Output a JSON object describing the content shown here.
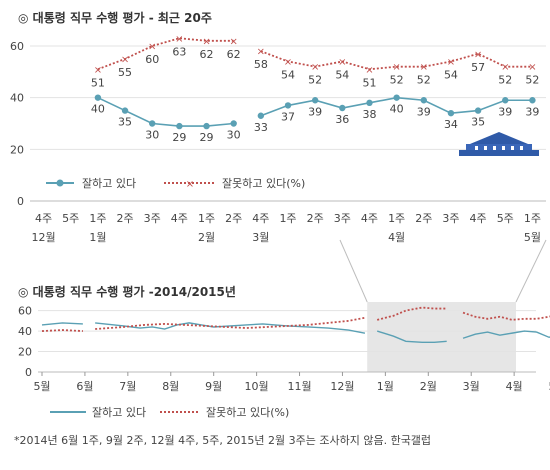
{
  "chart_data": [
    {
      "type": "line",
      "title": "◎ 대통령 직무 수행 평가 - 최근 20주",
      "ylim": [
        0,
        60
      ],
      "yticks": [
        "0",
        "20",
        "40",
        "60"
      ],
      "grid": true,
      "legend_position": "bottom-left",
      "x_week_labels": [
        "4주",
        "5주",
        "1주",
        "2주",
        "3주",
        "4주",
        "1주",
        "2주",
        "4주",
        "1주",
        "2주",
        "3주",
        "4주",
        "1주",
        "2주",
        "3주",
        "4주",
        "5주",
        "1주"
      ],
      "x_month_labels": [
        {
          "index": 0,
          "label": "12월"
        },
        {
          "index": 2,
          "label": "1월"
        },
        {
          "index": 6,
          "label": "2월"
        },
        {
          "index": 8,
          "label": "3월"
        },
        {
          "index": 13,
          "label": "4월"
        },
        {
          "index": 18,
          "label": "5월"
        }
      ],
      "series": [
        {
          "name": "잘하고 있다",
          "color": "#5aa0b4",
          "segments": [
            [
              2,
              3,
              4,
              5,
              6,
              7
            ],
            [
              8,
              9,
              10,
              11,
              12,
              13,
              14,
              15,
              16,
              17,
              18
            ]
          ],
          "values": [
            null,
            null,
            40,
            35,
            30,
            29,
            29,
            30,
            33,
            37,
            39,
            36,
            38,
            40,
            39,
            34,
            35,
            39,
            39
          ],
          "labels": [
            "",
            "",
            "40",
            "35",
            "30",
            "29",
            "29",
            "30",
            "33",
            "37",
            "39",
            "36",
            "38",
            "40",
            "39",
            "34",
            "35",
            "39",
            "39"
          ]
        },
        {
          "name": "잘못하고 있다(%)",
          "color": "#c0504d",
          "segments": [
            [
              2,
              3,
              4,
              5,
              6,
              7
            ],
            [
              8,
              9,
              10,
              11,
              12,
              13,
              14,
              15,
              16,
              17,
              18
            ]
          ],
          "values": [
            null,
            null,
            51,
            55,
            60,
            63,
            62,
            62,
            58,
            54,
            52,
            54,
            51,
            52,
            52,
            54,
            57,
            52,
            52
          ],
          "labels": [
            "",
            "",
            "51",
            "55",
            "60",
            "63",
            "62",
            "62",
            "58",
            "54",
            "52",
            "54",
            "51",
            "52",
            "52",
            "54",
            "57",
            "52",
            "52"
          ]
        }
      ]
    },
    {
      "type": "line",
      "title": "◎ 대통령 직무 수행 평가 -2014/2015년",
      "ylim": [
        0,
        60
      ],
      "yticks": [
        "0",
        "20",
        "40",
        "60"
      ],
      "grid": true,
      "legend_position": "bottom-left",
      "x_month_labels": [
        "5월",
        "6월",
        "7월",
        "8월",
        "9월",
        "10월",
        "11월",
        "12월",
        "1월",
        "2월",
        "3월",
        "4월",
        "5월"
      ],
      "highlight_range_months": [
        8.2,
        12.0
      ],
      "series": [
        {
          "name": "잘하고 있다",
          "color": "#5aa0b4",
          "segments": [
            [
              [
                0.0,
                46
              ],
              [
                0.5,
                48
              ],
              [
                1.0,
                47
              ]
            ],
            [
              [
                1.3,
                48
              ],
              [
                2.0,
                45
              ],
              [
                2.4,
                43
              ],
              [
                2.7,
                44
              ],
              [
                3.0,
                42
              ],
              [
                3.3,
                46
              ],
              [
                3.6,
                48
              ],
              [
                3.9,
                46
              ],
              [
                4.2,
                44
              ],
              [
                4.6,
                45
              ],
              [
                5.0,
                46
              ],
              [
                5.4,
                47
              ],
              [
                6.0,
                45
              ],
              [
                6.5,
                44
              ],
              [
                7.0,
                43
              ],
              [
                7.5,
                41
              ],
              [
                7.9,
                38
              ]
            ],
            [
              [
                8.2,
                40
              ],
              [
                8.6,
                35
              ],
              [
                8.9,
                30
              ],
              [
                9.3,
                29
              ],
              [
                9.6,
                29
              ],
              [
                9.9,
                30
              ]
            ],
            [
              [
                10.3,
                33
              ],
              [
                10.6,
                37
              ],
              [
                10.9,
                39
              ],
              [
                11.2,
                36
              ],
              [
                11.5,
                38
              ],
              [
                11.8,
                40
              ],
              [
                12.1,
                39
              ],
              [
                12.4,
                34
              ],
              [
                12.7,
                35
              ],
              [
                13.0,
                39
              ],
              [
                13.3,
                39
              ]
            ]
          ]
        },
        {
          "name": "잘못하고 있다(%)",
          "color": "#c0504d",
          "segments": [
            [
              [
                0.0,
                40
              ],
              [
                0.5,
                41
              ],
              [
                1.0,
                40
              ]
            ],
            [
              [
                1.3,
                42
              ],
              [
                2.0,
                44
              ],
              [
                2.5,
                46
              ],
              [
                3.0,
                47
              ],
              [
                3.5,
                46
              ],
              [
                4.0,
                45
              ],
              [
                4.5,
                44
              ],
              [
                5.0,
                43
              ],
              [
                5.5,
                44
              ],
              [
                6.0,
                45
              ],
              [
                6.5,
                46
              ],
              [
                7.0,
                48
              ],
              [
                7.5,
                50
              ],
              [
                7.9,
                53
              ]
            ],
            [
              [
                8.2,
                51
              ],
              [
                8.6,
                55
              ],
              [
                8.9,
                60
              ],
              [
                9.3,
                63
              ],
              [
                9.6,
                62
              ],
              [
                9.9,
                62
              ]
            ],
            [
              [
                10.3,
                58
              ],
              [
                10.6,
                54
              ],
              [
                10.9,
                52
              ],
              [
                11.2,
                54
              ],
              [
                11.5,
                51
              ],
              [
                11.8,
                52
              ],
              [
                12.1,
                52
              ],
              [
                12.4,
                54
              ],
              [
                12.7,
                57
              ],
              [
                13.0,
                52
              ],
              [
                13.3,
                52
              ]
            ]
          ]
        }
      ]
    }
  ],
  "note": "*2014년 6월 1주, 9월 2주, 12월 4주, 5주, 2015년 2월 3주는 조사하지 않음. 한국갤럽"
}
